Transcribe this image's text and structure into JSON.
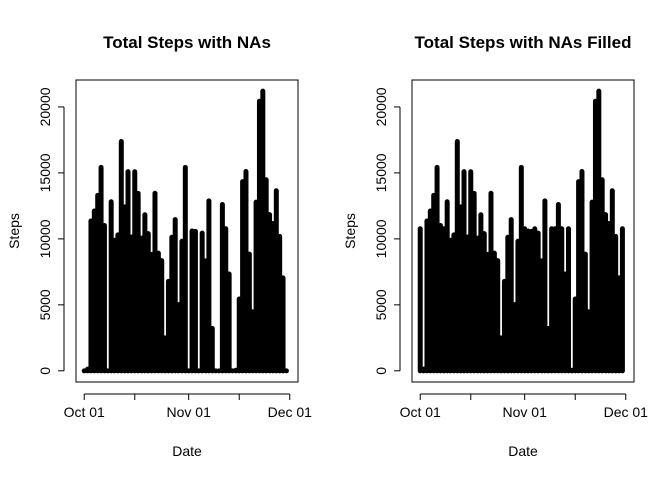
{
  "chart_data": [
    {
      "type": "bar",
      "title": "Total Steps with NAs",
      "xlabel": "Date",
      "ylabel": "Steps",
      "x_ticks": [
        {
          "date": "2012-10-01",
          "label": "Oct 01"
        },
        {
          "date": "2012-10-16",
          "label": ""
        },
        {
          "date": "2012-11-01",
          "label": "Nov 01"
        },
        {
          "date": "2012-11-16",
          "label": ""
        },
        {
          "date": "2012-12-01",
          "label": "Dec 01"
        }
      ],
      "y_ticks": [
        0,
        5000,
        10000,
        15000,
        20000
      ],
      "ylim": [
        0,
        21194
      ],
      "grid": false,
      "legend": "none",
      "bar_color": "#000000",
      "x": [
        "2012-10-01",
        "2012-10-02",
        "2012-10-03",
        "2012-10-04",
        "2012-10-05",
        "2012-10-06",
        "2012-10-07",
        "2012-10-08",
        "2012-10-09",
        "2012-10-10",
        "2012-10-11",
        "2012-10-12",
        "2012-10-13",
        "2012-10-14",
        "2012-10-15",
        "2012-10-16",
        "2012-10-17",
        "2012-10-18",
        "2012-10-19",
        "2012-10-20",
        "2012-10-21",
        "2012-10-22",
        "2012-10-23",
        "2012-10-24",
        "2012-10-25",
        "2012-10-26",
        "2012-10-27",
        "2012-10-28",
        "2012-10-29",
        "2012-10-30",
        "2012-10-31",
        "2012-11-01",
        "2012-11-02",
        "2012-11-03",
        "2012-11-04",
        "2012-11-05",
        "2012-11-06",
        "2012-11-07",
        "2012-11-08",
        "2012-11-09",
        "2012-11-10",
        "2012-11-11",
        "2012-11-12",
        "2012-11-13",
        "2012-11-14",
        "2012-11-15",
        "2012-11-16",
        "2012-11-17",
        "2012-11-18",
        "2012-11-19",
        "2012-11-20",
        "2012-11-21",
        "2012-11-22",
        "2012-11-23",
        "2012-11-24",
        "2012-11-25",
        "2012-11-26",
        "2012-11-27",
        "2012-11-28",
        "2012-11-29",
        "2012-11-30"
      ],
      "values": [
        0,
        126,
        11352,
        12116,
        13294,
        15420,
        11015,
        0,
        12811,
        9900,
        10304,
        17382,
        12426,
        15098,
        10139,
        15084,
        13452,
        10056,
        11829,
        10395,
        8821,
        13460,
        8918,
        8355,
        2492,
        6778,
        10119,
        11458,
        5018,
        9819,
        15414,
        0,
        10600,
        10571,
        0,
        10439,
        8334,
        12883,
        3219,
        0,
        0,
        12608,
        10765,
        7336,
        0,
        41,
        5441,
        14339,
        15110,
        8841,
        4472,
        12787,
        20427,
        21194,
        14478,
        11834,
        11162,
        13646,
        10183,
        7047,
        0
      ]
    },
    {
      "type": "bar",
      "title": "Total Steps with NAs Filled",
      "xlabel": "Date",
      "ylabel": "Steps",
      "x_ticks": [
        {
          "date": "2012-10-01",
          "label": "Oct 01"
        },
        {
          "date": "2012-10-16",
          "label": ""
        },
        {
          "date": "2012-11-01",
          "label": "Nov 01"
        },
        {
          "date": "2012-11-16",
          "label": ""
        },
        {
          "date": "2012-12-01",
          "label": "Dec 01"
        }
      ],
      "y_ticks": [
        0,
        5000,
        10000,
        15000,
        20000
      ],
      "ylim": [
        0,
        21194
      ],
      "grid": false,
      "legend": "none",
      "bar_color": "#000000",
      "x": [
        "2012-10-01",
        "2012-10-02",
        "2012-10-03",
        "2012-10-04",
        "2012-10-05",
        "2012-10-06",
        "2012-10-07",
        "2012-10-08",
        "2012-10-09",
        "2012-10-10",
        "2012-10-11",
        "2012-10-12",
        "2012-10-13",
        "2012-10-14",
        "2012-10-15",
        "2012-10-16",
        "2012-10-17",
        "2012-10-18",
        "2012-10-19",
        "2012-10-20",
        "2012-10-21",
        "2012-10-22",
        "2012-10-23",
        "2012-10-24",
        "2012-10-25",
        "2012-10-26",
        "2012-10-27",
        "2012-10-28",
        "2012-10-29",
        "2012-10-30",
        "2012-10-31",
        "2012-11-01",
        "2012-11-02",
        "2012-11-03",
        "2012-11-04",
        "2012-11-05",
        "2012-11-06",
        "2012-11-07",
        "2012-11-08",
        "2012-11-09",
        "2012-11-10",
        "2012-11-11",
        "2012-11-12",
        "2012-11-13",
        "2012-11-14",
        "2012-11-15",
        "2012-11-16",
        "2012-11-17",
        "2012-11-18",
        "2012-11-19",
        "2012-11-20",
        "2012-11-21",
        "2012-11-22",
        "2012-11-23",
        "2012-11-24",
        "2012-11-25",
        "2012-11-26",
        "2012-11-27",
        "2012-11-28",
        "2012-11-29",
        "2012-11-30"
      ],
      "values": [
        10766,
        126,
        11352,
        12116,
        13294,
        15420,
        11015,
        10766,
        12811,
        9900,
        10304,
        17382,
        12426,
        15098,
        10139,
        15084,
        13452,
        10056,
        11829,
        10395,
        8821,
        13460,
        8918,
        8355,
        2492,
        6778,
        10119,
        11458,
        5018,
        9819,
        15414,
        10766,
        10600,
        10571,
        10766,
        10439,
        8334,
        12883,
        3219,
        10766,
        10766,
        12608,
        10765,
        7336,
        10766,
        41,
        5441,
        14339,
        15110,
        8841,
        4472,
        12787,
        20427,
        21194,
        14478,
        11834,
        11162,
        13646,
        10183,
        7047,
        10766
      ]
    }
  ]
}
